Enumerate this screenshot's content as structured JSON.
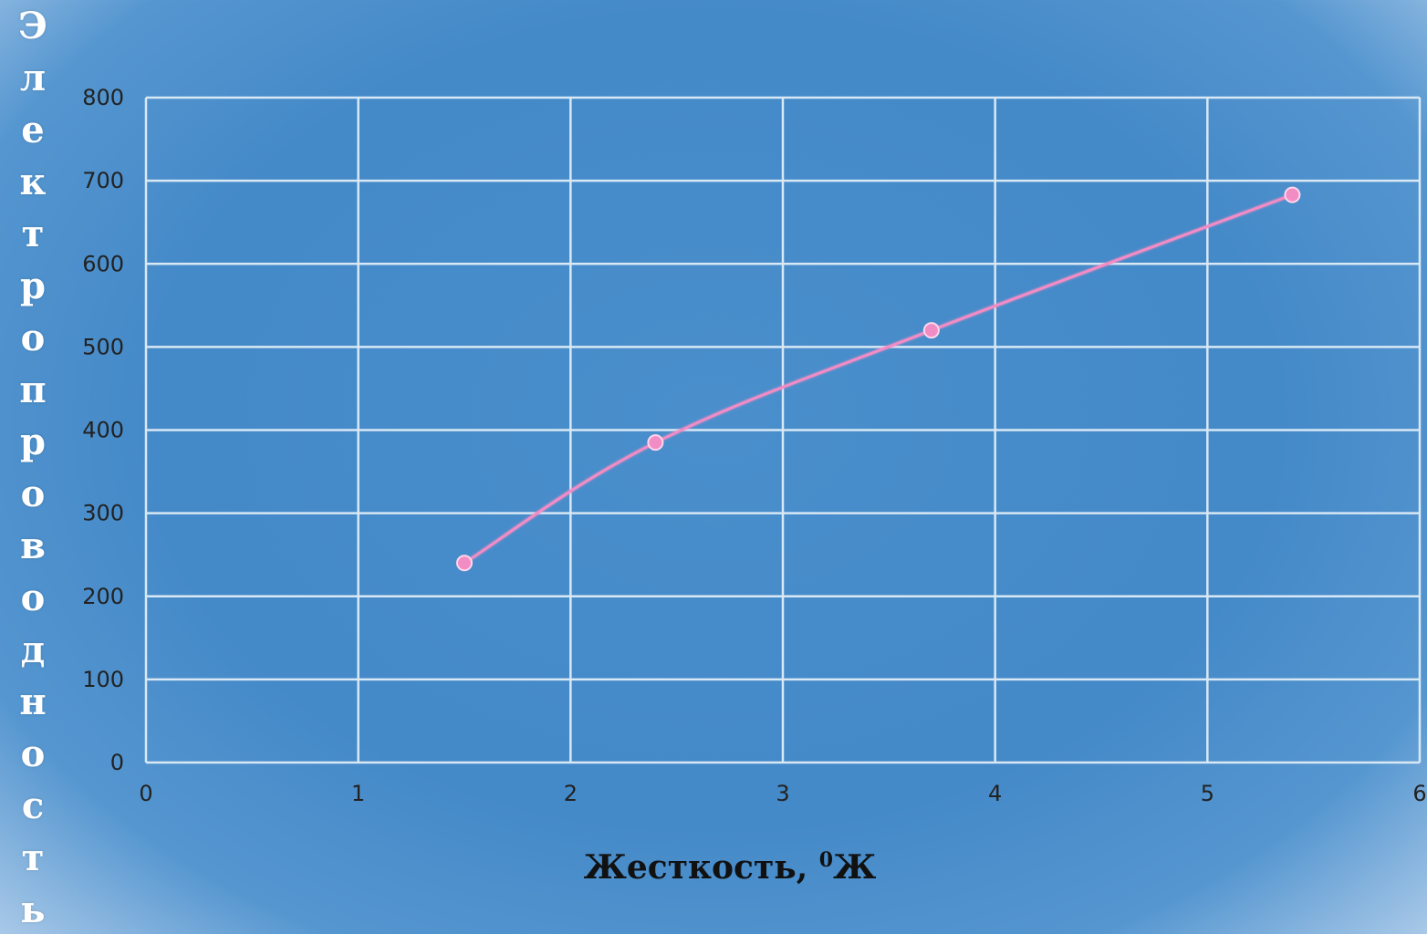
{
  "chart_data": {
    "type": "line",
    "title": "",
    "xlabel": "Жесткость, ⁰Ж",
    "xlabel_main": "Жесткость, ",
    "xlabel_sup": "0",
    "xlabel_unit": "Ж",
    "ylabel": "Электропроводность",
    "x": [
      1.5,
      2.4,
      3.7,
      5.4
    ],
    "series": [
      {
        "values": [
          240,
          385,
          520,
          683
        ],
        "color": "#f28cc4"
      }
    ],
    "xlim": [
      0,
      6
    ],
    "ylim": [
      0,
      800
    ],
    "xticks": [
      "0",
      "1",
      "2",
      "3",
      "4",
      "5",
      "6"
    ],
    "yticks": [
      "0",
      "100",
      "200",
      "300",
      "400",
      "500",
      "600",
      "700",
      "800"
    ],
    "grid": true,
    "gridColor": "#d8e8f5",
    "legend": "none"
  }
}
